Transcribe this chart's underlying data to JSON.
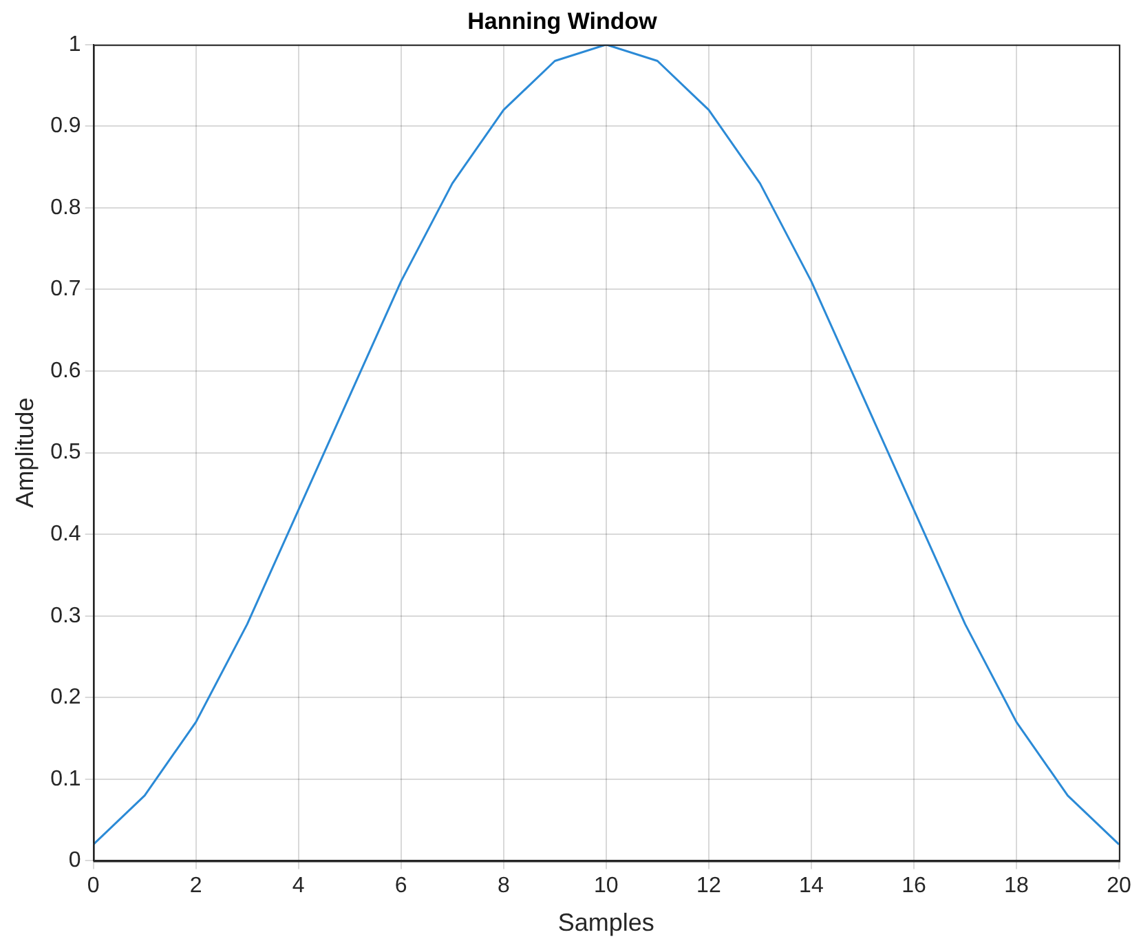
{
  "chart_data": {
    "type": "line",
    "title": "Hanning Window",
    "xlabel": "Samples",
    "ylabel": "Amplitude",
    "x": [
      0,
      1,
      2,
      3,
      4,
      5,
      6,
      7,
      8,
      9,
      10,
      11,
      12,
      13,
      14,
      15,
      16,
      17,
      18,
      19,
      20
    ],
    "series": [
      {
        "color": "#2b8ad6",
        "values": [
          0.02,
          0.08,
          0.17,
          0.29,
          0.43,
          0.57,
          0.71,
          0.83,
          0.92,
          0.98,
          1,
          0.98,
          0.92,
          0.83,
          0.71,
          0.57,
          0.43,
          0.29,
          0.17,
          0.08,
          0.02
        ]
      }
    ],
    "xlim": [
      0,
      20
    ],
    "xticks": [
      0,
      2,
      4,
      6,
      8,
      10,
      12,
      14,
      16,
      18,
      20
    ],
    "ylim": [
      0,
      1
    ],
    "yticks": [
      0,
      0.1,
      0.2,
      0.3,
      0.4,
      0.5,
      0.6,
      0.7,
      0.8,
      0.9,
      1
    ],
    "grid": true,
    "legend": false,
    "marker": "none",
    "line_style": "solid"
  }
}
